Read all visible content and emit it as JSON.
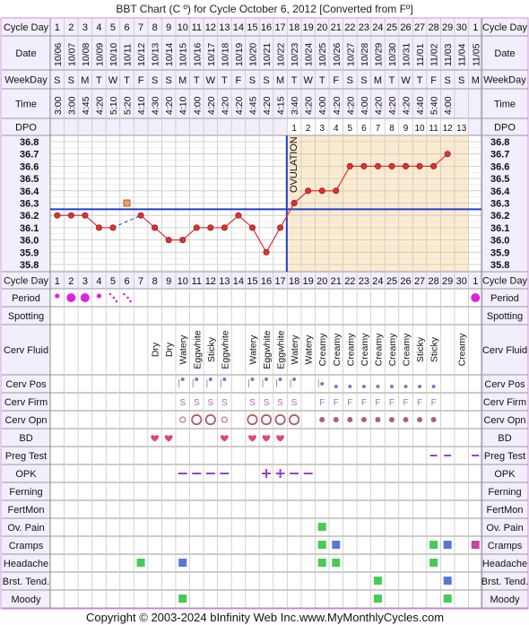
{
  "title": "BBT Chart (C º) for Cycle October 6, 2012  [Converted from Fº]",
  "footer": {
    "copyright": "Copyright © 2003-2024 bInfinity Web Inc.",
    "site": "www.MyMonthlyCycles.com"
  },
  "row_labels": {
    "cycle_day": "Cycle Day",
    "date": "Date",
    "weekday": "WeekDay",
    "time": "Time",
    "dpo": "DPO",
    "period": "Period",
    "spotting": "Spotting",
    "cerv_fluid": "Cerv Fluid",
    "cerv_pos": "Cerv Pos",
    "cerv_firm": "Cerv Firm",
    "cerv_opn": "Cerv Opn",
    "bd": "BD",
    "preg_test": "Preg Test",
    "opk": "OPK",
    "ferning": "Ferning",
    "fertmon": "FertMon",
    "ov_pain": "Ov. Pain",
    "cramps": "Cramps",
    "headache": "Headache",
    "brst_tend": "Brst. Tend.",
    "moody": "Moody"
  },
  "ovulation_label": "OVULATION",
  "colors": {
    "grid": "#c8c8c8",
    "header_bg": "#f3eefb",
    "luteal_bg": "#fdebcf",
    "temp_line": "#e03030",
    "coverline": "#1f3fd0",
    "ov_line": "#1f3fd0",
    "period": "#e020e0",
    "bd": "#e0457b",
    "opk": "#9a40d0",
    "green": "#44cc55",
    "blue": "#5577dd",
    "pink": "#cc4499",
    "pos_dot": "#8a70c8",
    "firm_text": "#a070c0",
    "opn": "#b06070",
    "outer_border": "#d090e0"
  },
  "chart_data": {
    "type": "line",
    "cycle_days": [
      1,
      2,
      3,
      4,
      5,
      6,
      7,
      8,
      9,
      10,
      11,
      12,
      13,
      14,
      15,
      16,
      17,
      18,
      19,
      20,
      21,
      22,
      23,
      24,
      25,
      26,
      27,
      28,
      29,
      30,
      1
    ],
    "dates": [
      "10/06",
      "10/07",
      "10/08",
      "10/09",
      "10/10",
      "10/11",
      "10/12",
      "10/13",
      "10/14",
      "10/15",
      "10/16",
      "10/17",
      "10/18",
      "10/19",
      "10/20",
      "10/21",
      "10/22",
      "10/23",
      "10/24",
      "10/25",
      "10/26",
      "10/27",
      "10/28",
      "10/29",
      "10/30",
      "10/31",
      "11/01",
      "11/02",
      "11/03",
      "11/04",
      "11/05"
    ],
    "weekdays": [
      "S",
      "S",
      "M",
      "T",
      "W",
      "T",
      "F",
      "S",
      "S",
      "M",
      "T",
      "W",
      "T",
      "F",
      "S",
      "S",
      "M",
      "T",
      "W",
      "T",
      "F",
      "S",
      "S",
      "M",
      "T",
      "W",
      "T",
      "F",
      "S",
      "S",
      "M"
    ],
    "times": [
      "3:00",
      "3:00",
      "4:45",
      "4:20",
      "5:10",
      "5:20",
      "4:10",
      "4:30",
      "4:20",
      "4:10",
      "4:00",
      "4:20",
      "4:20",
      "4:20",
      "4:45",
      "4:20",
      "4:15",
      "3:40",
      "4:20",
      "4:00",
      "4:20",
      "4:20",
      "4:00",
      "4:20",
      "4:20",
      "4:20",
      "4:40",
      "5:40",
      "4:00",
      "",
      ""
    ],
    "dpo": [
      "",
      "",
      "",
      "",
      "",
      "",
      "",
      "",
      "",
      "",
      "",
      "",
      "",
      "",
      "",
      "",
      "",
      "1",
      "2",
      "3",
      "4",
      "5",
      "6",
      "7",
      "8",
      "9",
      "10",
      "11",
      "12",
      "13",
      ""
    ],
    "y_ticks": [
      "36.8",
      "36.7",
      "36.6",
      "36.5",
      "36.4",
      "36.3",
      "36.2",
      "36.1",
      "36.0",
      "35.9",
      "35.8"
    ],
    "ylim": [
      35.8,
      36.8
    ],
    "temps": [
      36.2,
      36.2,
      36.2,
      36.1,
      36.1,
      null,
      36.2,
      36.1,
      36.0,
      36.0,
      36.1,
      36.1,
      36.1,
      36.2,
      36.1,
      35.9,
      36.1,
      36.3,
      36.4,
      36.4,
      36.4,
      36.6,
      36.6,
      36.6,
      36.6,
      36.6,
      36.6,
      36.6,
      36.7,
      null,
      null
    ],
    "dashed_segment": [
      5,
      7
    ],
    "open_point": {
      "day": 6,
      "value": 36.3
    },
    "coverline": 36.25,
    "ovulation_day": 17,
    "period": [
      "small",
      "big",
      "big",
      "small",
      "tiny",
      "tiny",
      "",
      "",
      "",
      "",
      "",
      "",
      "",
      "",
      "",
      "",
      "",
      "",
      "",
      "",
      "",
      "",
      "",
      "",
      "",
      "",
      "",
      "",
      "",
      "",
      "big"
    ],
    "cerv_fluid": [
      "",
      "",
      "",
      "",
      "",
      "",
      "",
      "Dry",
      "Dry",
      "Watery",
      "Eggwhite",
      "Sticky",
      "Eggwhite",
      "",
      "Watery",
      "Eggwhite",
      "Eggwhite",
      "Watery",
      "Watery",
      "Creamy",
      "Creamy",
      "Creamy",
      "Creamy",
      "Creamy",
      "Creamy",
      "Creamy",
      "Sticky",
      "Sticky",
      "",
      "Creamy",
      ""
    ],
    "cerv_pos": [
      "",
      "",
      "",
      "",
      "",
      "",
      "",
      "",
      "",
      "h",
      "h",
      "h",
      "h",
      "",
      "h",
      "h",
      "h",
      "h",
      "",
      "m",
      "l",
      "l",
      "l",
      "l",
      "l",
      "l",
      "l",
      "l",
      "",
      "",
      ""
    ],
    "cerv_firm": [
      "",
      "",
      "",
      "",
      "",
      "",
      "",
      "",
      "",
      "S",
      "S",
      "S",
      "S",
      "",
      "S",
      "S",
      "S",
      "S",
      "",
      "F",
      "F",
      "F",
      "F",
      "F",
      "F",
      "F",
      "F",
      "F",
      "",
      "",
      ""
    ],
    "cerv_opn": [
      "",
      "",
      "",
      "",
      "",
      "",
      "",
      "",
      "",
      "s",
      "o",
      "o",
      "s",
      "",
      "o",
      "o",
      "o",
      "o",
      "",
      "d",
      "d",
      "d",
      "d",
      "d",
      "d",
      "d",
      "d",
      "d",
      "",
      "",
      ""
    ],
    "bd": [
      8,
      9,
      13,
      15,
      16,
      17
    ],
    "preg_test": [
      28,
      29,
      31
    ],
    "opk": [
      "",
      "",
      "",
      "",
      "",
      "",
      "",
      "",
      "",
      "-",
      "-",
      "-",
      "-",
      "",
      "",
      "+",
      "+",
      "-",
      "-",
      "",
      "",
      "",
      "",
      "",
      "",
      "",
      "",
      "",
      "",
      "",
      ""
    ],
    "ov_pain": [
      20
    ],
    "cramps": [
      {
        "day": 20,
        "c": "green"
      },
      {
        "day": 21,
        "c": "blue"
      },
      {
        "day": 28,
        "c": "green"
      },
      {
        "day": 29,
        "c": "blue"
      },
      {
        "day": 31,
        "c": "pink"
      }
    ],
    "headache": [
      {
        "day": 7,
        "c": "green"
      },
      {
        "day": 10,
        "c": "blue"
      },
      {
        "day": 20,
        "c": "green"
      },
      {
        "day": 21,
        "c": "green"
      },
      {
        "day": 28,
        "c": "green"
      }
    ],
    "brst_tend": [
      {
        "day": 24,
        "c": "green"
      },
      {
        "day": 29,
        "c": "blue"
      }
    ],
    "moody": [
      {
        "day": 10,
        "c": "green"
      },
      {
        "day": 24,
        "c": "green"
      },
      {
        "day": 29,
        "c": "green"
      }
    ]
  }
}
